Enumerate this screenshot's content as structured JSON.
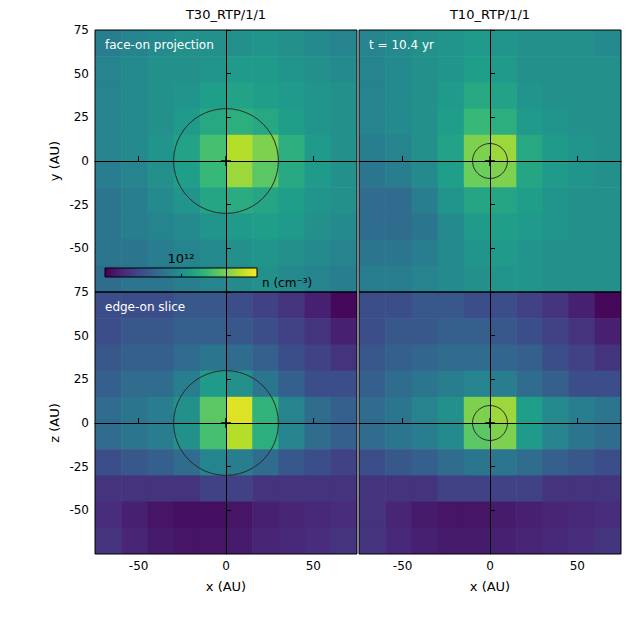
{
  "chart_data": [
    {
      "type": "heatmap",
      "title": "T30_RTP/1/1",
      "annotation": "face-on projection",
      "y_label": "y (AU)",
      "xlim": [
        -75,
        75
      ],
      "ylim": [
        -75,
        75
      ],
      "xticks": [
        -50,
        0,
        50
      ],
      "yticks": [
        -50,
        -25,
        0,
        25,
        50,
        75
      ],
      "tick_labels": "y",
      "colorbar": {
        "label": "n (cm⁻³)",
        "range": [
          100000000000.0,
          10000000000000.0
        ],
        "ticks": [
          {
            "value": 1000000000000.0,
            "label": "10¹²"
          }
        ],
        "log": true
      },
      "circle_radius": 30,
      "sink_position": [
        0,
        0
      ],
      "marker": "+",
      "x": [
        -67.5,
        -52.5,
        -37.5,
        -22.5,
        -7.5,
        7.5,
        22.5,
        37.5,
        52.5,
        67.5
      ],
      "y": [
        67.5,
        52.5,
        37.5,
        22.5,
        7.5,
        -7.5,
        -22.5,
        -37.5,
        -52.5,
        -67.5
      ],
      "cells": [
        [
          700000000000.0,
          800000000000.0,
          900000000000.0,
          1000000000000.0,
          1000000000000.0,
          1000000000000.0,
          1100000000000.0,
          1000000000000.0,
          900000000000.0,
          800000000000.0
        ],
        [
          800000000000.0,
          900000000000.0,
          1000000000000.0,
          1000000000000.0,
          1100000000000.0,
          1200000000000.0,
          1200000000000.0,
          1100000000000.0,
          1000000000000.0,
          900000000000.0
        ],
        [
          800000000000.0,
          900000000000.0,
          1000000000000.0,
          1100000000000.0,
          1300000000000.0,
          1400000000000.0,
          1300000000000.0,
          1200000000000.0,
          1100000000000.0,
          1000000000000.0
        ],
        [
          800000000000.0,
          900000000000.0,
          1000000000000.0,
          1200000000000.0,
          1600000000000.0,
          1800000000000.0,
          1600000000000.0,
          1300000000000.0,
          1100000000000.0,
          1000000000000.0
        ],
        [
          800000000000.0,
          900000000000.0,
          1100000000000.0,
          1400000000000.0,
          2500000000000.0,
          6000000000000.0,
          4000000000000.0,
          1800000000000.0,
          1200000000000.0,
          1000000000000.0
        ],
        [
          700000000000.0,
          800000000000.0,
          1000000000000.0,
          1300000000000.0,
          2200000000000.0,
          5000000000000.0,
          3000000000000.0,
          1600000000000.0,
          1200000000000.0,
          1000000000000.0
        ],
        [
          600000000000.0,
          700000000000.0,
          900000000000.0,
          1100000000000.0,
          1500000000000.0,
          1700000000000.0,
          1500000000000.0,
          1300000000000.0,
          1100000000000.0,
          1000000000000.0
        ],
        [
          600000000000.0,
          700000000000.0,
          800000000000.0,
          900000000000.0,
          1100000000000.0,
          1200000000000.0,
          1300000000000.0,
          1200000000000.0,
          1000000000000.0,
          900000000000.0
        ],
        [
          600000000000.0,
          600000000000.0,
          700000000000.0,
          800000000000.0,
          900000000000.0,
          1000000000000.0,
          1100000000000.0,
          1000000000000.0,
          900000000000.0,
          800000000000.0
        ],
        [
          500000000000.0,
          600000000000.0,
          600000000000.0,
          700000000000.0,
          800000000000.0,
          900000000000.0,
          1000000000000.0,
          900000000000.0,
          800000000000.0,
          700000000000.0
        ]
      ]
    },
    {
      "type": "heatmap",
      "title": "T10_RTP/1/1",
      "annotation": "t = 10.4 yr",
      "xlim": [
        -75,
        75
      ],
      "ylim": [
        -75,
        75
      ],
      "xticks": [
        -50,
        0,
        50
      ],
      "yticks": [
        -50,
        -25,
        0,
        25,
        50,
        75
      ],
      "tick_labels": false,
      "circle_radius": 10,
      "sink_position": [
        0,
        0
      ],
      "marker": "+",
      "x": [
        -67.5,
        -52.5,
        -37.5,
        -22.5,
        -7.5,
        7.5,
        22.5,
        37.5,
        52.5,
        67.5
      ],
      "y": [
        67.5,
        52.5,
        37.5,
        22.5,
        7.5,
        -7.5,
        -22.5,
        -37.5,
        -52.5,
        -67.5
      ],
      "cells": [
        [
          800000000000.0,
          900000000000.0,
          1000000000000.0,
          1100000000000.0,
          1200000000000.0,
          1100000000000.0,
          1000000000000.0,
          1000000000000.0,
          1000000000000.0,
          900000000000.0
        ],
        [
          800000000000.0,
          900000000000.0,
          1000000000000.0,
          1100000000000.0,
          1300000000000.0,
          1200000000000.0,
          1000000000000.0,
          1000000000000.0,
          1000000000000.0,
          1000000000000.0
        ],
        [
          800000000000.0,
          900000000000.0,
          1000000000000.0,
          1200000000000.0,
          1600000000000.0,
          1400000000000.0,
          1100000000000.0,
          1000000000000.0,
          1000000000000.0,
          1000000000000.0
        ],
        [
          800000000000.0,
          900000000000.0,
          1000000000000.0,
          1300000000000.0,
          2200000000000.0,
          1800000000000.0,
          1200000000000.0,
          1100000000000.0,
          1000000000000.0,
          1000000000000.0
        ],
        [
          700000000000.0,
          800000000000.0,
          1000000000000.0,
          1400000000000.0,
          4000000000000.0,
          5000000000000.0,
          1600000000000.0,
          1200000000000.0,
          1100000000000.0,
          1000000000000.0
        ],
        [
          600000000000.0,
          700000000000.0,
          900000000000.0,
          1300000000000.0,
          3500000000000.0,
          4000000000000.0,
          1500000000000.0,
          1200000000000.0,
          1100000000000.0,
          1000000000000.0
        ],
        [
          500000000000.0,
          500000000000.0,
          700000000000.0,
          1100000000000.0,
          1500000000000.0,
          1500000000000.0,
          1300000000000.0,
          1100000000000.0,
          1000000000000.0,
          1000000000000.0
        ],
        [
          500000000000.0,
          500000000000.0,
          600000000000.0,
          900000000000.0,
          1200000000000.0,
          1300000000000.0,
          1200000000000.0,
          1100000000000.0,
          1000000000000.0,
          1000000000000.0
        ],
        [
          600000000000.0,
          600000000000.0,
          700000000000.0,
          900000000000.0,
          1100000000000.0,
          1200000000000.0,
          1100000000000.0,
          1000000000000.0,
          1000000000000.0,
          1000000000000.0
        ],
        [
          700000000000.0,
          700000000000.0,
          800000000000.0,
          900000000000.0,
          1000000000000.0,
          1100000000000.0,
          1100000000000.0,
          1000000000000.0,
          1000000000000.0,
          1000000000000.0
        ]
      ]
    },
    {
      "type": "heatmap",
      "annotation": "edge-on slice",
      "x_label": "x (AU)",
      "y_label": "z (AU)",
      "xlim": [
        -75,
        75
      ],
      "ylim": [
        -75,
        75
      ],
      "xticks": [
        -50,
        0,
        50
      ],
      "yticks": [
        -50,
        -25,
        0,
        25,
        50,
        75
      ],
      "circle_radius": 30,
      "sink_position": [
        0,
        0
      ],
      "marker": "+",
      "x": [
        -67.5,
        -52.5,
        -37.5,
        -22.5,
        -7.5,
        7.5,
        22.5,
        37.5,
        52.5,
        67.5
      ],
      "y": [
        67.5,
        52.5,
        37.5,
        22.5,
        7.5,
        -7.5,
        -22.5,
        -37.5,
        -52.5,
        -67.5
      ],
      "cells": [
        [
          300000000000.0,
          300000000000.0,
          300000000000.0,
          350000000000.0,
          350000000000.0,
          300000000000.0,
          250000000000.0,
          200000000000.0,
          150000000000.0,
          110000000000.0
        ],
        [
          300000000000.0,
          350000000000.0,
          350000000000.0,
          400000000000.0,
          400000000000.0,
          350000000000.0,
          300000000000.0,
          250000000000.0,
          200000000000.0,
          150000000000.0
        ],
        [
          350000000000.0,
          400000000000.0,
          400000000000.0,
          500000000000.0,
          600000000000.0,
          500000000000.0,
          400000000000.0,
          300000000000.0,
          250000000000.0,
          200000000000.0
        ],
        [
          400000000000.0,
          500000000000.0,
          500000000000.0,
          700000000000.0,
          1200000000000.0,
          1000000000000.0,
          600000000000.0,
          400000000000.0,
          300000000000.0,
          300000000000.0
        ],
        [
          500000000000.0,
          600000000000.0,
          700000000000.0,
          1000000000000.0,
          3000000000000.0,
          8000000000000.0,
          2000000000000.0,
          800000000000.0,
          500000000000.0,
          400000000000.0
        ],
        [
          500000000000.0,
          600000000000.0,
          700000000000.0,
          1000000000000.0,
          2500000000000.0,
          6000000000000.0,
          1800000000000.0,
          800000000000.0,
          500000000000.0,
          400000000000.0
        ],
        [
          300000000000.0,
          350000000000.0,
          400000000000.0,
          500000000000.0,
          800000000000.0,
          700000000000.0,
          500000000000.0,
          350000000000.0,
          300000000000.0,
          250000000000.0
        ],
        [
          200000000000.0,
          200000000000.0,
          200000000000.0,
          200000000000.0,
          250000000000.0,
          250000000000.0,
          200000000000.0,
          200000000000.0,
          200000000000.0,
          200000000000.0
        ],
        [
          180000000000.0,
          150000000000.0,
          130000000000.0,
          120000000000.0,
          120000000000.0,
          130000000000.0,
          150000000000.0,
          160000000000.0,
          170000000000.0,
          180000000000.0
        ],
        [
          200000000000.0,
          160000000000.0,
          140000000000.0,
          130000000000.0,
          130000000000.0,
          140000000000.0,
          160000000000.0,
          170000000000.0,
          180000000000.0,
          200000000000.0
        ]
      ]
    },
    {
      "type": "heatmap",
      "x_label": "x (AU)",
      "xlim": [
        -75,
        75
      ],
      "ylim": [
        -75,
        75
      ],
      "xticks": [
        -50,
        0,
        50
      ],
      "yticks": [
        -50,
        -25,
        0,
        25,
        50,
        75
      ],
      "tick_labels": "x",
      "circle_radius": 10,
      "sink_position": [
        0,
        0
      ],
      "marker": "+",
      "x": [
        -67.5,
        -52.5,
        -37.5,
        -22.5,
        -7.5,
        7.5,
        22.5,
        37.5,
        52.5,
        67.5
      ],
      "y": [
        67.5,
        52.5,
        37.5,
        22.5,
        7.5,
        -7.5,
        -22.5,
        -37.5,
        -52.5,
        -67.5
      ],
      "cells": [
        [
          300000000000.0,
          300000000000.0,
          350000000000.0,
          350000000000.0,
          300000000000.0,
          300000000000.0,
          250000000000.0,
          200000000000.0,
          150000000000.0,
          110000000000.0
        ],
        [
          300000000000.0,
          350000000000.0,
          350000000000.0,
          400000000000.0,
          400000000000.0,
          350000000000.0,
          300000000000.0,
          250000000000.0,
          200000000000.0,
          150000000000.0
        ],
        [
          350000000000.0,
          400000000000.0,
          450000000000.0,
          500000000000.0,
          500000000000.0,
          450000000000.0,
          400000000000.0,
          300000000000.0,
          250000000000.0,
          200000000000.0
        ],
        [
          400000000000.0,
          500000000000.0,
          600000000000.0,
          700000000000.0,
          800000000000.0,
          700000000000.0,
          500000000000.0,
          400000000000.0,
          300000000000.0,
          300000000000.0
        ],
        [
          500000000000.0,
          600000000000.0,
          800000000000.0,
          1000000000000.0,
          4000000000000.0,
          5000000000000.0,
          1300000000000.0,
          900000000000.0,
          700000000000.0,
          600000000000.0
        ],
        [
          500000000000.0,
          600000000000.0,
          700000000000.0,
          900000000000.0,
          3000000000000.0,
          4000000000000.0,
          1200000000000.0,
          800000000000.0,
          600000000000.0,
          500000000000.0
        ],
        [
          300000000000.0,
          350000000000.0,
          400000000000.0,
          500000000000.0,
          600000000000.0,
          600000000000.0,
          500000000000.0,
          400000000000.0,
          350000000000.0,
          300000000000.0
        ],
        [
          200000000000.0,
          200000000000.0,
          200000000000.0,
          250000000000.0,
          250000000000.0,
          250000000000.0,
          250000000000.0,
          200000000000.0,
          200000000000.0,
          200000000000.0
        ],
        [
          200000000000.0,
          160000000000.0,
          140000000000.0,
          130000000000.0,
          130000000000.0,
          140000000000.0,
          150000000000.0,
          160000000000.0,
          170000000000.0,
          180000000000.0
        ],
        [
          200000000000.0,
          170000000000.0,
          150000000000.0,
          140000000000.0,
          140000000000.0,
          150000000000.0,
          160000000000.0,
          170000000000.0,
          180000000000.0,
          200000000000.0
        ]
      ]
    }
  ]
}
